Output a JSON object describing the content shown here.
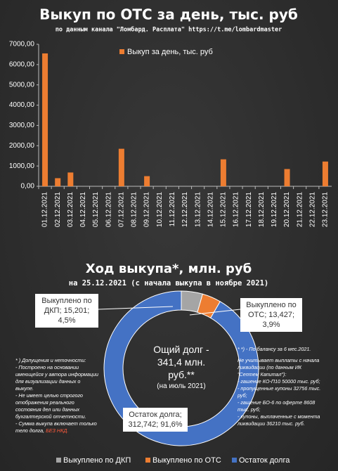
{
  "chart_data": [
    {
      "type": "bar",
      "title": "Выкуп по ОТС за день, тыс. руб",
      "subtitle": "по данным канала \"Ломбард. Расплата\" https://t.me/lombardmaster",
      "categories": [
        "01.12.2021",
        "02.12.2021",
        "03.12.2021",
        "04.12.2021",
        "05.12.2021",
        "06.12.2021",
        "07.12.2021",
        "08.12.2021",
        "09.12.2021",
        "10.12.2021",
        "11.12.2021",
        "12.12.2021",
        "13.12.2021",
        "14.12.2021",
        "15.12.2021",
        "16.12.2021",
        "17.12.2021",
        "18.12.2021",
        "19.12.2021",
        "20.12.2021",
        "21.12.2021",
        "22.12.2021",
        "23.12.2021"
      ],
      "series": [
        {
          "name": "Выкуп за день, тыс. руб",
          "color": "#ed7d31",
          "values": [
            6550,
            400,
            680,
            0,
            0,
            0,
            1850,
            0,
            500,
            0,
            0,
            0,
            0,
            0,
            1330,
            0,
            0,
            0,
            0,
            850,
            0,
            0,
            1220
          ]
        }
      ],
      "ylim": [
        0,
        7000
      ],
      "yticks": [
        {
          "value": 0,
          "label": "0,00"
        },
        {
          "value": 1000,
          "label": "1000,00"
        },
        {
          "value": 2000,
          "label": "2000,00"
        },
        {
          "value": 3000,
          "label": "3000,00"
        },
        {
          "value": 4000,
          "label": "4000,00"
        },
        {
          "value": 5000,
          "label": "5000,00"
        },
        {
          "value": 6000,
          "label": "6000,00"
        },
        {
          "value": 7000,
          "label": "7000,00"
        }
      ],
      "legend": "top"
    },
    {
      "type": "donut",
      "title": "Ход выкупа*, млн. руб",
      "subtitle": "на 25.12.2021 (с начала выкупа в ноябре 2021)",
      "categories": [
        "Выкуплено по ДКП",
        "Выкуплено по ОТС",
        "Остаток долга"
      ],
      "values": [
        15.201,
        13.427,
        312.742
      ],
      "value_labels": [
        "Выкуплено по ДКП; 15,201; 4,5%",
        "Выкуплено по ОТС; 13,427; 3,9%",
        "Остаток долга; 312,742; 91,6%"
      ],
      "colors": [
        "#a5a5a5",
        "#ed7d31",
        "#4472c4"
      ],
      "center_text": [
        "Ощий долг  -",
        "341,4 млн.",
        "руб.**",
        "(на июль 2021)"
      ],
      "notes_left": [
        "* ) Допущения и неточности:",
        "- Построено на основании имеющейся у автора информации для визуализации данных о выкупе.",
        "- Не имеет целью строгого отображения реального состояния дел или данных бухгалтерской отчетности.",
        "- Сумма выкупа включает только тело долга,"
      ],
      "notes_left_highlight": "БЕЗ НКД.",
      "notes_right": [
        "* *)  - По балансу за 6 мес.2021.",
        "Не учитывает выплаты с начала ликвидации (по данным ИК \"Септем Капитал\"):",
        "- гашение КО-П10 50000 тыс. руб;",
        "- пропущенные купоны 32756 тыс. руб;",
        "- гашение БО-6 по оферте 8608 тыс. руб;",
        "- купоны, выплаченные с момента ликвидации 36210 тыс. руб."
      ],
      "legend": "bottom"
    }
  ]
}
